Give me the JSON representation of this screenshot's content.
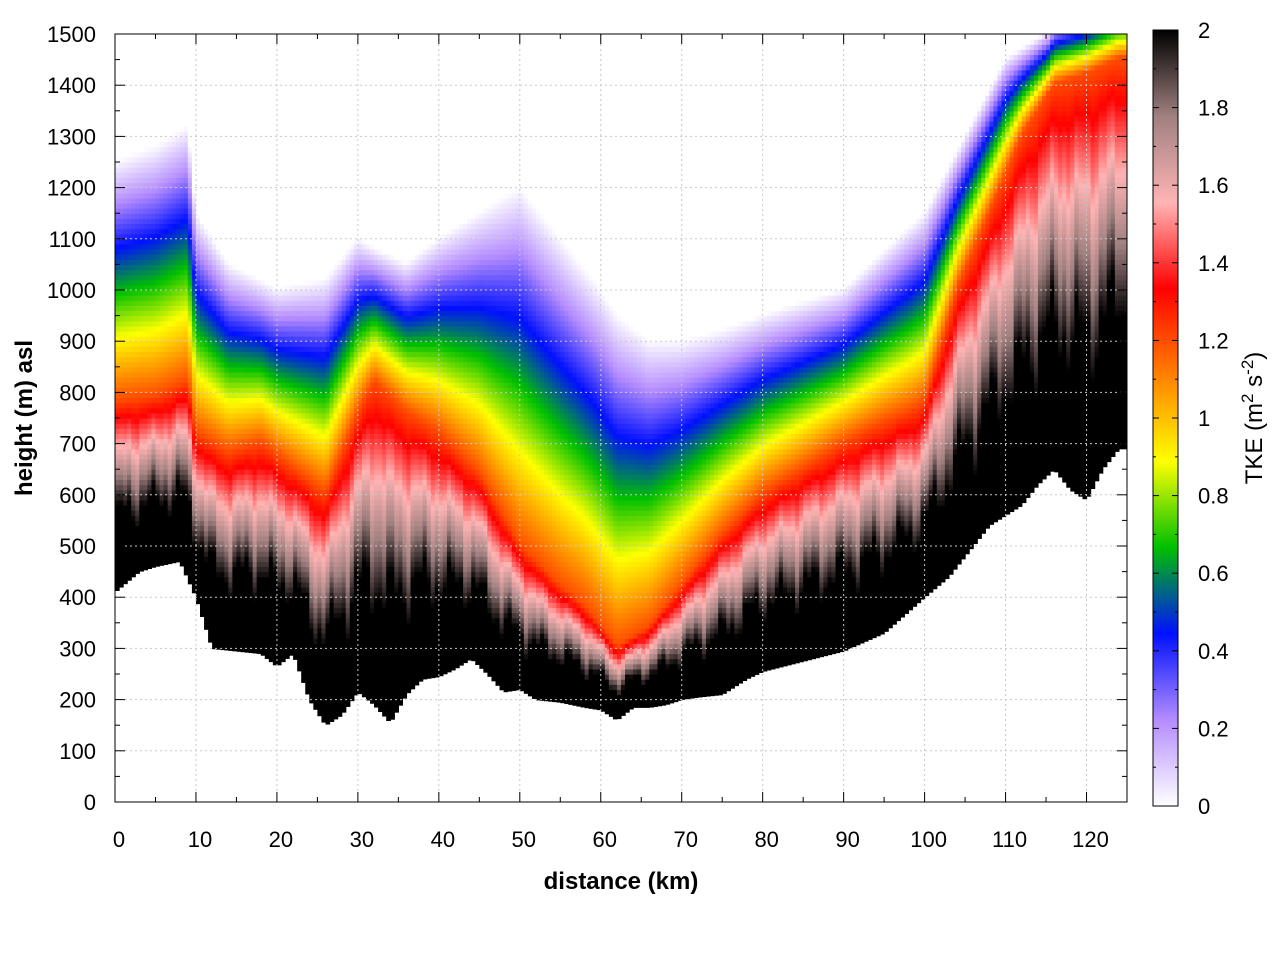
{
  "chart_data": {
    "type": "heatmap",
    "title": "",
    "xlabel": "distance (km)",
    "ylabel": "height (m) asl",
    "xlim": [
      0,
      125
    ],
    "ylim": [
      0,
      1500
    ],
    "x_ticks": [
      "0",
      "10",
      "20",
      "30",
      "40",
      "50",
      "60",
      "70",
      "80",
      "90",
      "100",
      "110",
      "120"
    ],
    "y_ticks": [
      "0",
      "100",
      "200",
      "300",
      "400",
      "500",
      "600",
      "700",
      "800",
      "900",
      "1000",
      "1100",
      "1200",
      "1300",
      "1400",
      "1500"
    ],
    "grid": true,
    "colorbar": {
      "label_main": "TKE (m",
      "label_sup1": "2",
      "label_mid": " s",
      "label_sup2": "-2",
      "label_end": ")",
      "range": [
        0,
        2
      ],
      "ticks": [
        "0",
        "0.2",
        "0.4",
        "0.6",
        "0.8",
        "1",
        "1.2",
        "1.4",
        "1.6",
        "1.8",
        "2"
      ],
      "colors": [
        "#ffffff",
        "#b48cff",
        "#0010ff",
        "#00c000",
        "#ffff00",
        "#ff8000",
        "#ff0000",
        "#ffb4b4",
        "#a08080",
        "#000000"
      ]
    },
    "terrain": {
      "x": [
        0,
        3,
        5,
        8,
        10,
        12,
        15,
        18,
        20,
        22,
        24,
        26,
        28,
        30,
        32,
        34,
        36,
        38,
        40,
        42,
        44,
        46,
        48,
        50,
        52,
        55,
        58,
        60,
        62,
        64,
        66,
        68,
        70,
        72,
        75,
        78,
        80,
        85,
        90,
        95,
        100,
        103,
        106,
        108,
        110,
        112,
        114,
        116,
        118,
        120,
        122,
        124
      ],
      "height": [
        410,
        450,
        460,
        470,
        400,
        300,
        295,
        290,
        265,
        290,
        200,
        150,
        170,
        215,
        190,
        155,
        210,
        240,
        245,
        260,
        280,
        250,
        215,
        220,
        200,
        195,
        185,
        180,
        160,
        185,
        185,
        190,
        200,
        205,
        210,
        240,
        255,
        275,
        295,
        330,
        400,
        440,
        500,
        540,
        560,
        580,
        620,
        650,
        610,
        590,
        650,
        690
      ]
    },
    "boundary_layer_top": {
      "x": [
        0,
        5,
        9,
        10,
        14,
        18,
        22,
        26,
        30,
        32,
        36,
        40,
        45,
        50,
        55,
        58,
        62,
        66,
        70,
        75,
        80,
        85,
        90,
        95,
        98,
        100,
        104,
        108,
        112,
        116,
        120,
        124
      ],
      "height": [
        780,
        790,
        820,
        720,
        680,
        700,
        650,
        600,
        760,
        820,
        760,
        720,
        640,
        500,
        420,
        380,
        300,
        340,
        420,
        520,
        600,
        650,
        700,
        740,
        760,
        780,
        1000,
        1150,
        1300,
        1400,
        1420,
        1450
      ]
    },
    "free_top": {
      "x": [
        0,
        5,
        9,
        10,
        14,
        20,
        26,
        30,
        32,
        36,
        40,
        45,
        50,
        55,
        60,
        62,
        66,
        70,
        75,
        80,
        90,
        100,
        105,
        110,
        115,
        120,
        124
      ],
      "height": [
        1250,
        1280,
        1320,
        1150,
        1050,
        1000,
        1020,
        1100,
        1080,
        1050,
        1100,
        1150,
        1200,
        1100,
        1000,
        950,
        900,
        900,
        920,
        950,
        1000,
        1150,
        1300,
        1450,
        1500,
        1500,
        1500
      ]
    }
  }
}
